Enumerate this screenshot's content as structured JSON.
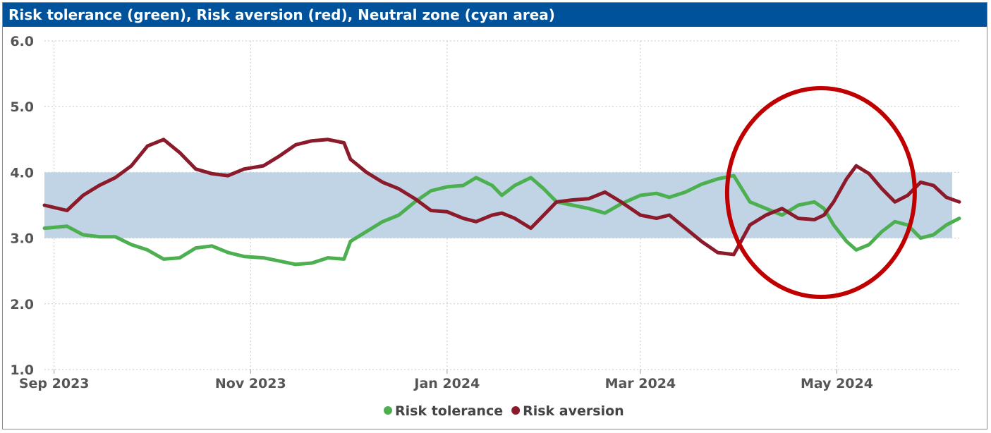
{
  "chart_data": {
    "type": "line",
    "title": "Risk tolerance (green), Risk aversion (red), Neutral zone (cyan area)",
    "ylim": [
      1.0,
      6.0
    ],
    "y_ticks": [
      "1.0",
      "2.0",
      "3.0",
      "4.0",
      "5.0",
      "6.0"
    ],
    "x_ticks": [
      {
        "label": "Sep 2023",
        "date": "2023-09-01"
      },
      {
        "label": "Nov 2023",
        "date": "2023-11-01"
      },
      {
        "label": "Jan 2024",
        "date": "2024-01-01"
      },
      {
        "label": "Mar 2024",
        "date": "2024-03-01"
      },
      {
        "label": "May 2024",
        "date": "2024-05-01"
      }
    ],
    "xlim": [
      "2023-08-29",
      "2024-06-08"
    ],
    "grid": true,
    "legend_position": "bottom-center",
    "neutral_zone": {
      "y_min": 3.0,
      "y_max": 4.0,
      "color": "#c0d4e6"
    },
    "annotation": {
      "shape": "circle",
      "color": "#c00000",
      "center_date": "2024-04-30",
      "center_y": 3.5
    },
    "series": [
      {
        "name": "Risk tolerance",
        "color": "#4caf50",
        "points": [
          [
            "2023-08-29",
            3.15
          ],
          [
            "2023-09-05",
            3.18
          ],
          [
            "2023-09-10",
            3.05
          ],
          [
            "2023-09-15",
            3.02
          ],
          [
            "2023-09-20",
            3.02
          ],
          [
            "2023-09-25",
            2.9
          ],
          [
            "2023-09-30",
            2.82
          ],
          [
            "2023-10-05",
            2.68
          ],
          [
            "2023-10-10",
            2.7
          ],
          [
            "2023-10-15",
            2.85
          ],
          [
            "2023-10-20",
            2.88
          ],
          [
            "2023-10-25",
            2.78
          ],
          [
            "2023-10-30",
            2.72
          ],
          [
            "2023-11-05",
            2.7
          ],
          [
            "2023-11-10",
            2.65
          ],
          [
            "2023-11-15",
            2.6
          ],
          [
            "2023-11-20",
            2.62
          ],
          [
            "2023-11-25",
            2.7
          ],
          [
            "2023-11-30",
            2.68
          ],
          [
            "2023-12-02",
            2.95
          ],
          [
            "2023-12-07",
            3.1
          ],
          [
            "2023-12-12",
            3.25
          ],
          [
            "2023-12-17",
            3.35
          ],
          [
            "2023-12-22",
            3.55
          ],
          [
            "2023-12-27",
            3.72
          ],
          [
            "2024-01-01",
            3.78
          ],
          [
            "2024-01-06",
            3.8
          ],
          [
            "2024-01-10",
            3.92
          ],
          [
            "2024-01-15",
            3.8
          ],
          [
            "2024-01-18",
            3.65
          ],
          [
            "2024-01-22",
            3.8
          ],
          [
            "2024-01-27",
            3.92
          ],
          [
            "2024-01-31",
            3.75
          ],
          [
            "2024-02-04",
            3.55
          ],
          [
            "2024-02-09",
            3.5
          ],
          [
            "2024-02-14",
            3.45
          ],
          [
            "2024-02-19",
            3.38
          ],
          [
            "2024-02-24",
            3.52
          ],
          [
            "2024-03-01",
            3.65
          ],
          [
            "2024-03-06",
            3.68
          ],
          [
            "2024-03-10",
            3.62
          ],
          [
            "2024-03-15",
            3.7
          ],
          [
            "2024-03-20",
            3.82
          ],
          [
            "2024-03-25",
            3.9
          ],
          [
            "2024-03-30",
            3.95
          ],
          [
            "2024-04-04",
            3.55
          ],
          [
            "2024-04-09",
            3.45
          ],
          [
            "2024-04-14",
            3.35
          ],
          [
            "2024-04-19",
            3.5
          ],
          [
            "2024-04-24",
            3.55
          ],
          [
            "2024-04-27",
            3.45
          ],
          [
            "2024-04-30",
            3.2
          ],
          [
            "2024-05-04",
            2.95
          ],
          [
            "2024-05-07",
            2.82
          ],
          [
            "2024-05-11",
            2.9
          ],
          [
            "2024-05-15",
            3.1
          ],
          [
            "2024-05-19",
            3.25
          ],
          [
            "2024-05-23",
            3.2
          ],
          [
            "2024-05-27",
            3.0
          ],
          [
            "2024-05-31",
            3.05
          ],
          [
            "2024-06-04",
            3.2
          ],
          [
            "2024-06-08",
            3.3
          ]
        ]
      },
      {
        "name": "Risk aversion",
        "color": "#8b1a2b",
        "points": [
          [
            "2023-08-29",
            3.5
          ],
          [
            "2023-09-05",
            3.42
          ],
          [
            "2023-09-10",
            3.65
          ],
          [
            "2023-09-15",
            3.8
          ],
          [
            "2023-09-20",
            3.92
          ],
          [
            "2023-09-25",
            4.1
          ],
          [
            "2023-09-30",
            4.4
          ],
          [
            "2023-10-05",
            4.5
          ],
          [
            "2023-10-10",
            4.3
          ],
          [
            "2023-10-15",
            4.05
          ],
          [
            "2023-10-20",
            3.98
          ],
          [
            "2023-10-25",
            3.95
          ],
          [
            "2023-10-30",
            4.05
          ],
          [
            "2023-11-05",
            4.1
          ],
          [
            "2023-11-10",
            4.25
          ],
          [
            "2023-11-15",
            4.42
          ],
          [
            "2023-11-20",
            4.48
          ],
          [
            "2023-11-25",
            4.5
          ],
          [
            "2023-11-30",
            4.45
          ],
          [
            "2023-12-02",
            4.2
          ],
          [
            "2023-12-07",
            4.0
          ],
          [
            "2023-12-12",
            3.85
          ],
          [
            "2023-12-17",
            3.75
          ],
          [
            "2023-12-22",
            3.6
          ],
          [
            "2023-12-27",
            3.42
          ],
          [
            "2024-01-01",
            3.4
          ],
          [
            "2024-01-06",
            3.3
          ],
          [
            "2024-01-10",
            3.25
          ],
          [
            "2024-01-15",
            3.35
          ],
          [
            "2024-01-18",
            3.38
          ],
          [
            "2024-01-22",
            3.3
          ],
          [
            "2024-01-27",
            3.15
          ],
          [
            "2024-01-31",
            3.35
          ],
          [
            "2024-02-04",
            3.55
          ],
          [
            "2024-02-09",
            3.58
          ],
          [
            "2024-02-14",
            3.6
          ],
          [
            "2024-02-19",
            3.7
          ],
          [
            "2024-02-24",
            3.55
          ],
          [
            "2024-03-01",
            3.35
          ],
          [
            "2024-03-06",
            3.3
          ],
          [
            "2024-03-10",
            3.35
          ],
          [
            "2024-03-15",
            3.15
          ],
          [
            "2024-03-20",
            2.95
          ],
          [
            "2024-03-25",
            2.78
          ],
          [
            "2024-03-30",
            2.75
          ],
          [
            "2024-04-04",
            3.2
          ],
          [
            "2024-04-09",
            3.35
          ],
          [
            "2024-04-14",
            3.45
          ],
          [
            "2024-04-19",
            3.3
          ],
          [
            "2024-04-24",
            3.28
          ],
          [
            "2024-04-27",
            3.35
          ],
          [
            "2024-04-30",
            3.55
          ],
          [
            "2024-05-04",
            3.9
          ],
          [
            "2024-05-07",
            4.1
          ],
          [
            "2024-05-11",
            3.98
          ],
          [
            "2024-05-15",
            3.75
          ],
          [
            "2024-05-19",
            3.55
          ],
          [
            "2024-05-23",
            3.65
          ],
          [
            "2024-05-27",
            3.85
          ],
          [
            "2024-05-31",
            3.8
          ],
          [
            "2024-06-04",
            3.62
          ],
          [
            "2024-06-08",
            3.55
          ]
        ]
      }
    ]
  }
}
